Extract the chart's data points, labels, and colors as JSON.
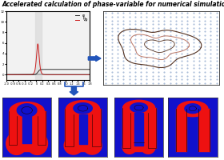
{
  "title": "Accelerated calculation of phase-variable for numerical simulation of multiphase flows",
  "title_fontsize": 5.5,
  "bg_color": "#f2f2f2",
  "line1_color": "#333333",
  "line2_color": "#cc2222",
  "legend1": "φ",
  "legend2": "∇φ",
  "dot_color": "#6688bb",
  "contour_color1": "#bb7766",
  "contour_color2": "#553322",
  "arrow_color": "#2255bb",
  "blue_panel": "#1111cc",
  "red_shape": "#ee1111",
  "dark_line": "#220000"
}
